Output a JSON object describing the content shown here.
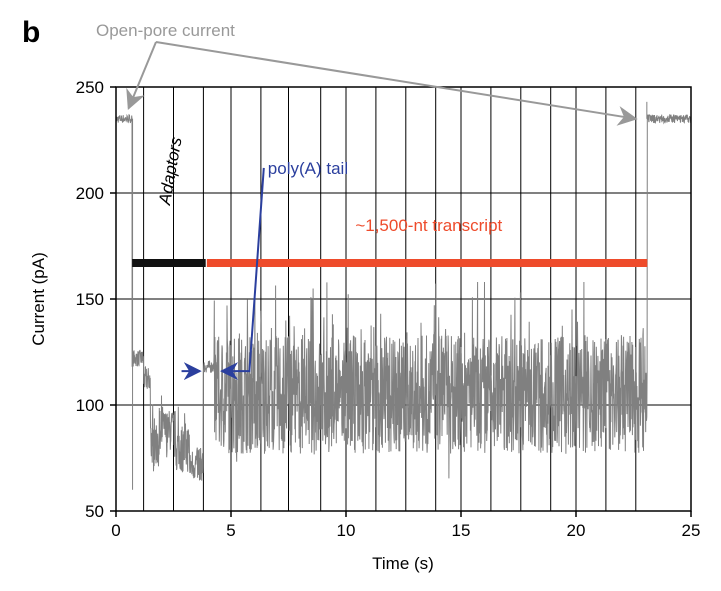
{
  "panel_label": "b",
  "colors": {
    "trace": "#808080",
    "adaptors_bar": "#111111",
    "transcript_bar": "#ee4b2b",
    "polyA": "#2b3f9e",
    "open_pore": "#999999",
    "grid": "#000000"
  },
  "chart_data": {
    "type": "line",
    "title": "",
    "xlabel": "Time (s)",
    "ylabel": "Current (pA)",
    "xlim": [
      0,
      25
    ],
    "ylim": [
      50,
      250
    ],
    "xticks": [
      0,
      5,
      10,
      15,
      20,
      25
    ],
    "yticks": [
      50,
      100,
      150,
      200,
      250
    ],
    "xtick_labels": [
      "0",
      "5",
      "10",
      "15",
      "20",
      "25"
    ],
    "ytick_labels": [
      "50",
      "100",
      "150",
      "200",
      "250"
    ],
    "vertical_gridlines_x": [
      1.2,
      2.5,
      3.8,
      5,
      6.3,
      7.5,
      8.9,
      10,
      11.3,
      12.6,
      13.9,
      15,
      16.3,
      17.6,
      18.9,
      20,
      21.3,
      22.6
    ],
    "horizontal_gridlines_y": [
      100,
      150,
      200
    ],
    "grid": true,
    "series": [
      {
        "segments": [
          {
            "x_start": 0,
            "x_end": 0.7,
            "baseline": 235,
            "noise": 2,
            "kind": "open"
          },
          {
            "x_start": 0.7,
            "x_end": 1.2,
            "baseline": 122,
            "noise": 4,
            "kind": "level"
          },
          {
            "x_start": 1.2,
            "x_end": 1.5,
            "baseline": 112,
            "noise": 6,
            "kind": "level"
          },
          {
            "x_start": 1.5,
            "x_end": 2.0,
            "baseline": 83,
            "noise": 12,
            "kind": "noisy"
          },
          {
            "x_start": 2.0,
            "x_end": 2.6,
            "baseline": 88,
            "noise": 10,
            "kind": "noisy"
          },
          {
            "x_start": 2.6,
            "x_end": 3.2,
            "baseline": 80,
            "noise": 12,
            "kind": "noisy"
          },
          {
            "x_start": 3.2,
            "x_end": 3.8,
            "baseline": 72,
            "noise": 8,
            "kind": "noisy"
          },
          {
            "x_start": 3.8,
            "x_end": 4.25,
            "baseline": 118,
            "noise": 3,
            "kind": "level"
          },
          {
            "x_start": 4.25,
            "x_end": 23.1,
            "baseline": 105,
            "noise": 28,
            "kind": "noisy"
          },
          {
            "x_start": 23.1,
            "x_end": 25,
            "baseline": 235,
            "noise": 2,
            "kind": "open"
          }
        ],
        "spikes": [
          {
            "x": 0.72,
            "y": 60
          },
          {
            "x": 23.08,
            "y": 243
          }
        ]
      }
    ],
    "bars": {
      "adaptors": {
        "x_start": 0.7,
        "x_end": 3.9,
        "y": 167
      },
      "transcript": {
        "x_start": 3.95,
        "x_end": 23.1,
        "y": 167
      }
    },
    "annotations": {
      "open_pore": {
        "label": "Open-pore current",
        "arrow_targets": [
          {
            "x": 0.55,
            "y": 240
          },
          {
            "x": 22.6,
            "y": 235
          }
        ]
      },
      "adaptors": {
        "label": "Adaptors",
        "x": 2.6,
        "y": 210
      },
      "transcript": {
        "label": "~1,500-nt transcript",
        "x": 13.6,
        "y": 182
      },
      "polyA": {
        "label": "poly(A) tail",
        "label_x": 6.6,
        "label_y": 209,
        "target_right": {
          "x": 4.6,
          "y": 116
        },
        "target_left": {
          "x": 3.65,
          "y": 116
        },
        "arrow_left_start": {
          "x": 2.85,
          "y": 116
        }
      }
    }
  }
}
